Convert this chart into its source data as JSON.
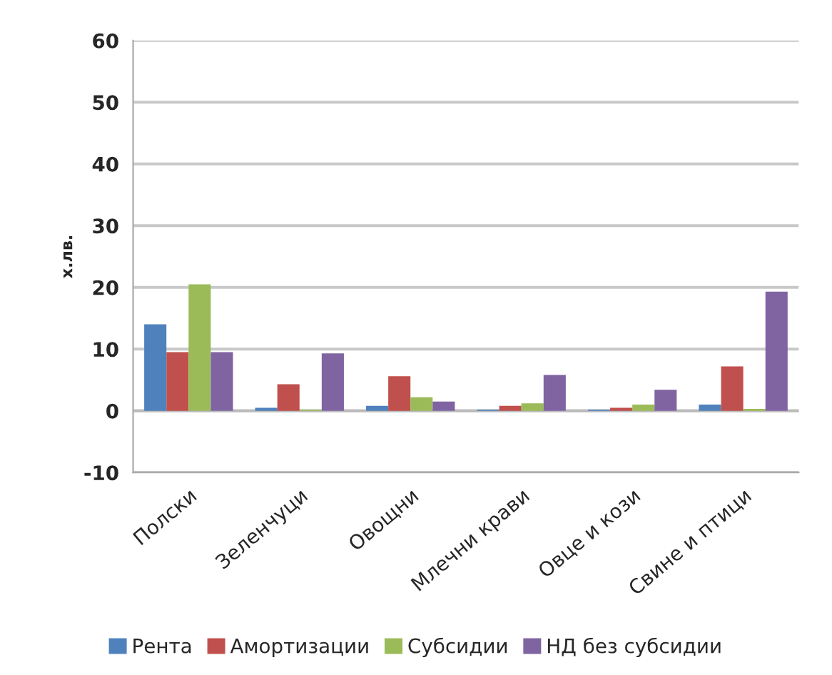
{
  "chart_data": {
    "type": "bar",
    "ylabel": "х.лв.",
    "categories": [
      "Полски",
      "Зеленчуци",
      "Овощни",
      "Млечни крави",
      "Овце и кози",
      "Свине и птици"
    ],
    "series": [
      {
        "name": "Рента",
        "color": "#4f81bd",
        "values": [
          14,
          0.5,
          0.8,
          0.2,
          0.2,
          1.0
        ]
      },
      {
        "name": "Амортизации",
        "color": "#c0504d",
        "values": [
          9.5,
          4.3,
          5.6,
          0.8,
          0.5,
          7.2
        ]
      },
      {
        "name": "Субсидии",
        "color": "#9bbb59",
        "values": [
          20.5,
          0.2,
          2.2,
          1.2,
          1.0,
          0.3
        ]
      },
      {
        "name": "НД без субсидии",
        "color": "#8064a2",
        "values": [
          9.5,
          9.3,
          1.5,
          5.8,
          3.4,
          19.3
        ]
      }
    ],
    "ylim": [
      -10,
      60
    ],
    "yticks": [
      -10,
      0,
      10,
      20,
      30,
      40,
      50,
      60
    ],
    "grid": "y",
    "legend": "bottom"
  }
}
